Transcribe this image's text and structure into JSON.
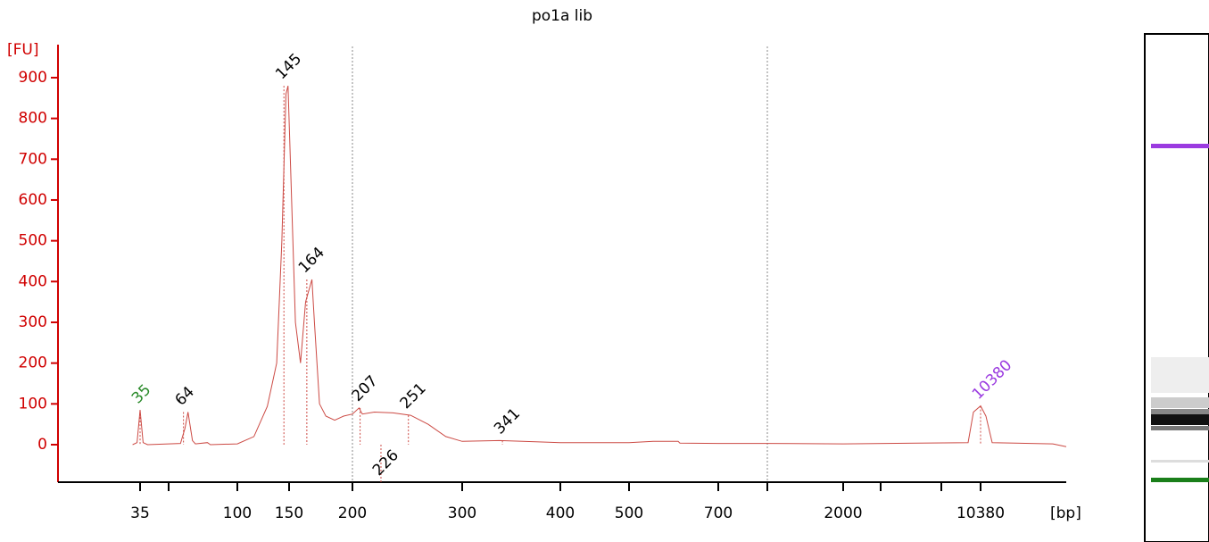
{
  "chart_data": {
    "type": "line",
    "title": "po1a lib",
    "y_label": "[FU]",
    "x_label": "[bp]",
    "x": [
      30,
      33,
      35,
      37,
      40,
      62,
      65,
      67,
      70,
      72,
      80,
      82,
      100,
      116,
      129,
      138,
      143,
      147,
      149,
      151,
      155,
      159,
      163,
      168,
      170,
      174,
      179,
      186,
      193,
      200,
      206,
      209,
      220,
      237,
      253,
      269,
      285,
      300,
      338,
      375,
      400,
      500,
      554,
      610,
      614,
      700,
      1211,
      2000,
      9616,
      9943,
      10380,
      10706,
      11087,
      14786,
      15602
    ],
    "series": [
      {
        "name": "po1a lib",
        "color": "#cc4a44",
        "values": [
          0,
          5,
          85,
          5,
          0,
          3,
          40,
          80,
          10,
          2,
          5,
          0,
          2,
          20,
          94,
          200,
          500,
          860,
          880,
          700,
          300,
          200,
          350,
          405,
          300,
          100,
          70,
          60,
          70,
          75,
          90,
          75,
          80,
          78,
          72,
          50,
          20,
          8,
          10,
          7,
          5,
          5,
          8,
          8,
          4,
          3,
          3,
          2,
          5,
          80,
          95,
          70,
          5,
          2,
          -5
        ]
      }
    ],
    "xticks": [
      35,
      100,
      150,
      200,
      300,
      400,
      500,
      700,
      2000,
      10380
    ],
    "ylim": [
      -92,
      970
    ],
    "yticks": [
      0,
      100,
      200,
      300,
      400,
      500,
      600,
      700,
      800,
      900
    ],
    "axis_color": "#d00000",
    "peaks": {
      "values": [
        35,
        64,
        145,
        164,
        207,
        226,
        251,
        341,
        10380
      ],
      "colors": [
        "#2a8a2a",
        "#000000",
        "#000000",
        "#000000",
        "#000000",
        "#000000",
        "#000000",
        "#000000",
        "#9b3be0"
      ]
    }
  }
}
